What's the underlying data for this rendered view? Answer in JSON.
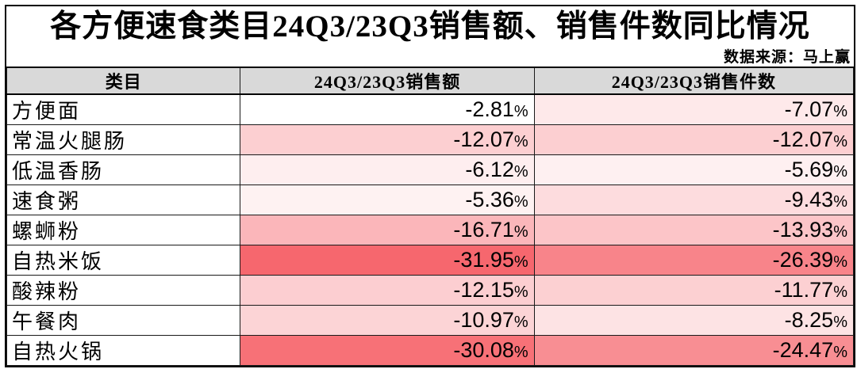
{
  "title": "各方便速食类目24Q3/23Q3销售额、销售件数同比情况",
  "source": "数据来源：马上赢",
  "colors": {
    "header_bg": "#D9D9D9",
    "grid_border": "#000000",
    "heat_max_color": "#FFFFFF",
    "heat_min_color": "#F6676E"
  },
  "chart_data": {
    "type": "table",
    "title": "各方便速食类目24Q3/23Q3销售额、销售件数同比情况",
    "source": "数据来源：马上赢",
    "columns": [
      "类目",
      "24Q3/23Q3销售额",
      "24Q3/23Q3销售件数"
    ],
    "rows": [
      {
        "category": "方便面",
        "sales_yoy_pct": -2.81,
        "units_yoy_pct": -7.07
      },
      {
        "category": "常温火腿肠",
        "sales_yoy_pct": -12.07,
        "units_yoy_pct": -12.07
      },
      {
        "category": "低温香肠",
        "sales_yoy_pct": -6.12,
        "units_yoy_pct": -5.69
      },
      {
        "category": "速食粥",
        "sales_yoy_pct": -5.36,
        "units_yoy_pct": -9.43
      },
      {
        "category": "螺蛳粉",
        "sales_yoy_pct": -16.71,
        "units_yoy_pct": -13.93
      },
      {
        "category": "自热米饭",
        "sales_yoy_pct": -31.95,
        "units_yoy_pct": -26.39
      },
      {
        "category": "酸辣粉",
        "sales_yoy_pct": -12.15,
        "units_yoy_pct": -11.77
      },
      {
        "category": "午餐肉",
        "sales_yoy_pct": -10.97,
        "units_yoy_pct": -8.25
      },
      {
        "category": "自热火锅",
        "sales_yoy_pct": -30.08,
        "units_yoy_pct": -24.47
      }
    ],
    "heatmap": {
      "applies_to": [
        "sales_yoy_pct",
        "units_yoy_pct"
      ],
      "max_value": -2.81,
      "min_value": -31.95,
      "max_color": "#FFFFFF",
      "min_color": "#F6676E"
    }
  }
}
